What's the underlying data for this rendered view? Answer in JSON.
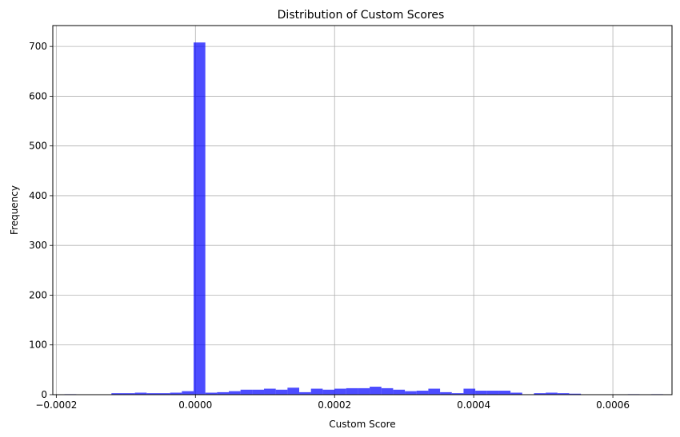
{
  "chart_data": {
    "type": "bar",
    "title": "Distribution of Custom Scores",
    "xlabel": "Custom Score",
    "ylabel": "Frequency",
    "xlim": [
      -0.000205,
      0.000685
    ],
    "ylim": [
      0,
      742
    ],
    "grid": true,
    "bar_color": "#0000ff",
    "bar_opacity": 0.7,
    "grid_color": "#b0b0b0",
    "xticks": [
      {
        "value": -0.0002,
        "label": "−0.0002"
      },
      {
        "value": 0.0,
        "label": "0.0000"
      },
      {
        "value": 0.0002,
        "label": "0.0002"
      },
      {
        "value": 0.0004,
        "label": "0.0004"
      },
      {
        "value": 0.0006,
        "label": "0.0006"
      }
    ],
    "yticks": [
      {
        "value": 0,
        "label": "0"
      },
      {
        "value": 100,
        "label": "100"
      },
      {
        "value": 200,
        "label": "200"
      },
      {
        "value": 300,
        "label": "300"
      },
      {
        "value": 400,
        "label": "400"
      },
      {
        "value": 500,
        "label": "500"
      },
      {
        "value": 600,
        "label": "600"
      },
      {
        "value": 700,
        "label": "700"
      }
    ],
    "bins": {
      "start": -0.0001882,
      "width": 1.687e-05,
      "counts": [
        1,
        0,
        0,
        0,
        3,
        3,
        4,
        3,
        3,
        4,
        7,
        708,
        4,
        5,
        7,
        10,
        10,
        12,
        10,
        14,
        5,
        12,
        10,
        12,
        13,
        13,
        16,
        13,
        10,
        7,
        8,
        12,
        5,
        3,
        12,
        8,
        8,
        8,
        4,
        0,
        3,
        4,
        3,
        2,
        0,
        0,
        0,
        0,
        1,
        0,
        1
      ]
    }
  }
}
